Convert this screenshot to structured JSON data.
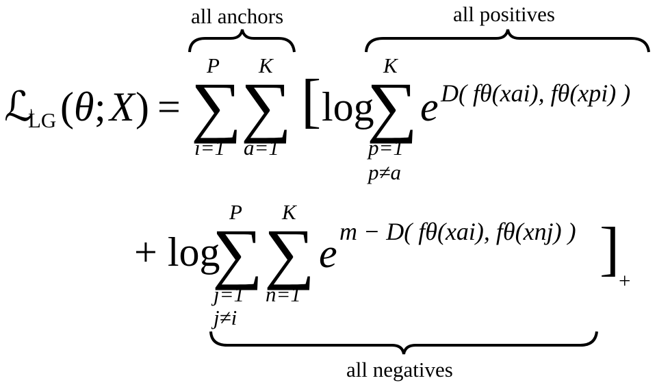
{
  "annotations": {
    "anchors": "all anchors",
    "positives": "all positives",
    "negatives": "all negatives"
  },
  "equation": {
    "loss_symbol": "ℒ",
    "loss_subscript": "LG",
    "args_open": "(",
    "theta": "θ",
    "semicolon": ";",
    "x_set": "X",
    "args_close": ")",
    "equals": "=",
    "sum_symbol": "∑",
    "upper_p": "P",
    "upper_k": "K",
    "lower_i": "i=1",
    "lower_a": "a=1",
    "lower_p": "p=1",
    "cond_p": "p≠a",
    "lower_j": "j=1",
    "cond_j": "j≠i",
    "lower_n": "n=1",
    "bracket_open": "[",
    "bracket_close": "]",
    "bracket_sub": "+",
    "log": "log",
    "plus_log": "+ log",
    "exp_base": "e",
    "pos_exponent": "D( fθ(xai), fθ(xpi) )",
    "neg_exponent": "m − D( fθ(xai), fθ(xnj) )"
  }
}
